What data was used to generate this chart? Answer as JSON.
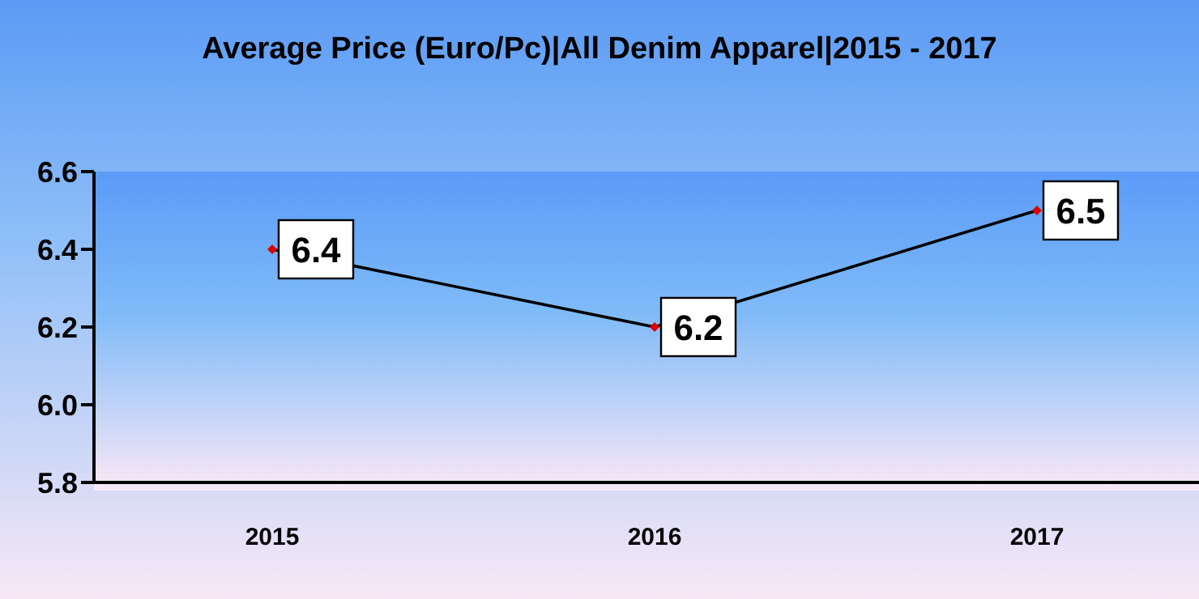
{
  "chart_data": {
    "type": "line",
    "title": "Average Price (Euro/Pc)|All Denim Apparel|2015 - 2017",
    "categories": [
      "2015",
      "2016",
      "2017"
    ],
    "series": [
      {
        "color": "#000000",
        "values": [
          6.4,
          6.2,
          6.5
        ]
      }
    ],
    "ylim": [
      5.8,
      6.6
    ],
    "yticks": [
      5.8,
      {
        "value": 6.0,
        "label": "6.0"
      },
      6.2,
      6.4,
      6.6
    ],
    "data_labels": true,
    "marker": "diamond",
    "grid": false,
    "legend": false
  }
}
